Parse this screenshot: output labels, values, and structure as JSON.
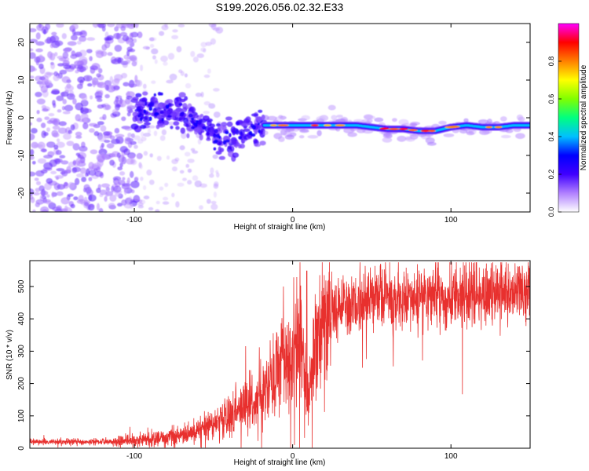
{
  "title": "S199.2026.056.02.32.E33",
  "chart_data": [
    {
      "type": "heatmap",
      "title": "S199.2026.056.02.32.E33",
      "xlabel": "Height of straight line (km)",
      "ylabel": "Frequency (Hz)",
      "xlim": [
        -166,
        150
      ],
      "ylim": [
        -25,
        25
      ],
      "xticks": [
        -100,
        0,
        100
      ],
      "yticks": [
        -20,
        -10,
        0,
        10,
        20
      ],
      "colorbar": {
        "label": "Normalized spectral amplitude",
        "range": [
          0,
          1
        ],
        "ticks": [
          0.0,
          0.2,
          0.4,
          0.6,
          0.8
        ],
        "colors": [
          "#ffffff",
          "#b080ff",
          "#4000ff",
          "#0000ff",
          "#00c0ff",
          "#00ff80",
          "#80ff00",
          "#ffff00",
          "#ff8000",
          "#ff0000",
          "#ff00ff"
        ]
      },
      "frequency_ridge": {
        "x": [
          -100,
          -90,
          -80,
          -70,
          -60,
          -50,
          -40,
          -30,
          -20,
          -10,
          0,
          10,
          20,
          30,
          40,
          50,
          60,
          70,
          80,
          90,
          100,
          110,
          120,
          130,
          140,
          150
        ],
        "y": [
          1.5,
          2.5,
          2.0,
          1.0,
          -2.0,
          -5.0,
          -6.0,
          -4.0,
          -2.0,
          -2.0,
          -2.0,
          -2.0,
          -2.0,
          -2.0,
          -2.0,
          -2.5,
          -3.0,
          -3.0,
          -3.5,
          -3.5,
          -2.5,
          -2.0,
          -2.5,
          -2.5,
          -2.0,
          -2.0
        ]
      }
    },
    {
      "type": "line",
      "xlabel": "Height of straight line (km)",
      "ylabel": "SNR (10 * v/v)",
      "xlim": [
        -166,
        150
      ],
      "ylim": [
        0,
        580
      ],
      "xticks": [
        -100,
        0,
        100
      ],
      "yticks": [
        0,
        100,
        200,
        300,
        400,
        500
      ],
      "color": "#e8302e",
      "series": [
        {
          "name": "SNR",
          "x": [
            -166,
            -150,
            -130,
            -110,
            -100,
            -90,
            -80,
            -70,
            -60,
            -50,
            -40,
            -30,
            -20,
            -15,
            -10,
            -5,
            0,
            5,
            10,
            15,
            20,
            25,
            30,
            40,
            50,
            60,
            70,
            80,
            90,
            100,
            110,
            120,
            130,
            140,
            150
          ],
          "y": [
            20,
            20,
            20,
            20,
            25,
            30,
            35,
            40,
            55,
            70,
            100,
            130,
            170,
            200,
            240,
            280,
            300,
            320,
            170,
            320,
            380,
            410,
            440,
            450,
            460,
            465,
            470,
            470,
            470,
            475,
            475,
            480,
            480,
            485,
            480
          ]
        }
      ]
    }
  ]
}
